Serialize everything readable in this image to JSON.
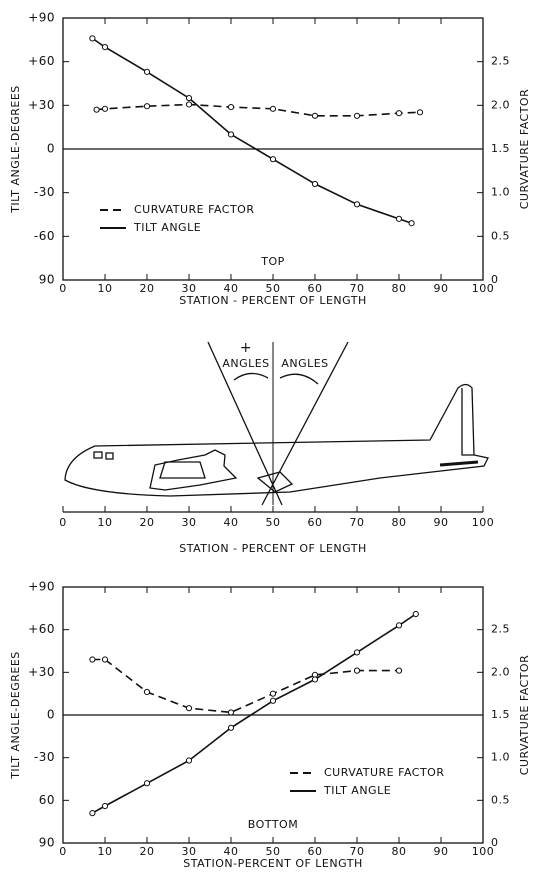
{
  "chart_data": [
    {
      "type": "line",
      "annotation": "TOP",
      "xlabel": "STATION - PERCENT OF LENGTH",
      "ylabel": "TILT ANGLE-DEGREES",
      "y2label": "CURVATURE FACTOR",
      "xlim": [
        0,
        100
      ],
      "xticks": [
        0,
        10,
        20,
        30,
        40,
        50,
        60,
        70,
        80,
        90,
        100
      ],
      "ylim": [
        -90,
        90
      ],
      "yticks": [
        {
          "value": -90,
          "label": "90"
        },
        -60,
        -30,
        0,
        {
          "value": 30,
          "label": "+30"
        },
        {
          "value": 60,
          "label": "+60"
        },
        {
          "value": 90,
          "label": "+90"
        }
      ],
      "y2lim": [
        0,
        3
      ],
      "y2ticks": [
        0,
        0.5,
        {
          "value": 1,
          "label": "1.0"
        },
        1.5,
        {
          "value": 2,
          "label": "2.0"
        },
        2.5
      ],
      "legend": "middle left",
      "series": [
        {
          "name": "CURVATURE FACTOR",
          "color": "#111111",
          "style": "dashed",
          "axis": "y2",
          "x": [
            8,
            10,
            20,
            30,
            40,
            50,
            60,
            70,
            80,
            85
          ],
          "values": [
            1.95,
            1.96,
            1.99,
            2.01,
            1.98,
            1.96,
            1.88,
            1.88,
            1.91,
            1.92
          ]
        },
        {
          "name": "TILT ANGLE",
          "color": "#111111",
          "style": "solid",
          "x": [
            7,
            10,
            20,
            30,
            40,
            50,
            60,
            70,
            80,
            83
          ],
          "values": [
            76,
            70,
            53,
            35,
            10,
            -7,
            -24,
            -38,
            -48,
            -51
          ]
        }
      ]
    },
    {
      "type": "line",
      "annotation": "BOTTOM",
      "xlabel": "STATION-PERCENT OF LENGTH",
      "ylabel": "TILT ANGLE-DEGREES",
      "y2label": "CURVATURE FACTOR",
      "xlim": [
        0,
        100
      ],
      "xticks": [
        0,
        10,
        20,
        30,
        40,
        50,
        60,
        70,
        80,
        90,
        100
      ],
      "ylim": [
        -90,
        90
      ],
      "yticks": [
        {
          "value": -90,
          "label": "90"
        },
        {
          "value": -60,
          "label": "60"
        },
        -30,
        0,
        {
          "value": 30,
          "label": "+30"
        },
        {
          "value": 60,
          "label": "+60"
        },
        {
          "value": 90,
          "label": "+90"
        }
      ],
      "y2lim": [
        0,
        3
      ],
      "y2ticks": [
        0,
        0.5,
        {
          "value": 1,
          "label": "1.0"
        },
        1.5,
        {
          "value": 2,
          "label": "2.0"
        },
        2.5
      ],
      "legend": "lower right",
      "series": [
        {
          "name": "CURVATURE FACTOR",
          "color": "#111111",
          "style": "dashed",
          "axis": "y2",
          "x": [
            7,
            10,
            20,
            30,
            40,
            50,
            60,
            70,
            80
          ],
          "values": [
            2.15,
            2.15,
            1.77,
            1.58,
            1.53,
            1.75,
            1.97,
            2.02,
            2.02
          ]
        },
        {
          "name": "TILT ANGLE",
          "color": "#111111",
          "style": "solid",
          "x": [
            7,
            10,
            20,
            30,
            40,
            50,
            60,
            70,
            80,
            84
          ],
          "values": [
            -69,
            -64,
            -48,
            -32,
            -9,
            10,
            25,
            44,
            63,
            71
          ]
        }
      ]
    }
  ],
  "diagram": {
    "plus": "+",
    "left_label": "ANGLES",
    "right_label": "ANGLES",
    "xticks": [
      0,
      10,
      20,
      30,
      40,
      50,
      60,
      70,
      80,
      90,
      100
    ],
    "xlabel": "STATION - PERCENT OF LENGTH"
  }
}
